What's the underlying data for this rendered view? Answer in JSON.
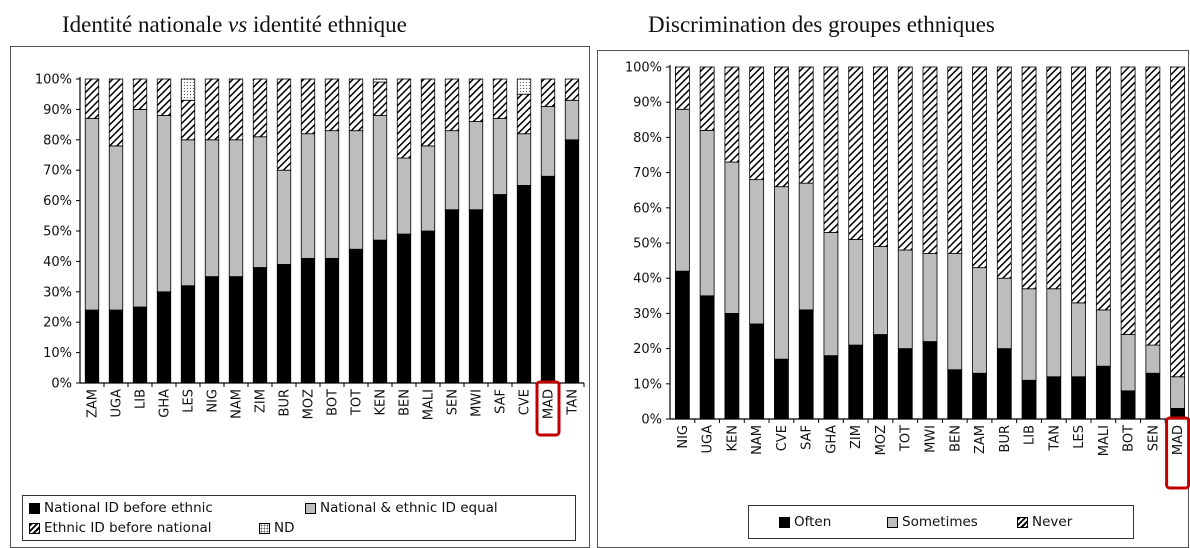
{
  "chart_data": [
    {
      "type": "bar",
      "stacked": true,
      "title": "Identité nationale ",
      "title_italic": "vs",
      "title_rest": " identité ethnique",
      "yticks": [
        "0%",
        "10%",
        "20%",
        "30%",
        "40%",
        "50%",
        "60%",
        "70%",
        "80%",
        "90%",
        "100%"
      ],
      "ylim": [
        0,
        100
      ],
      "categories": [
        "ZAM",
        "UGA",
        "LIB",
        "GHA",
        "LES",
        "NIG",
        "NAM",
        "ZIM",
        "BUR",
        "MOZ",
        "BOT",
        "TOT",
        "KEN",
        "BEN",
        "MALI",
        "SEN",
        "MWI",
        "SAF",
        "CVE",
        "MAD",
        "TAN"
      ],
      "highlight": "MAD",
      "series": [
        {
          "name": "National ID before ethnic",
          "fill": "black",
          "values": [
            24,
            24,
            25,
            30,
            32,
            35,
            35,
            38,
            39,
            41,
            41,
            44,
            47,
            49,
            50,
            57,
            57,
            62,
            65,
            68,
            80
          ]
        },
        {
          "name": "National & ethnic ID equal",
          "fill": "gray",
          "values": [
            63,
            54,
            65,
            58,
            48,
            45,
            45,
            43,
            31,
            41,
            42,
            39,
            41,
            25,
            28,
            26,
            29,
            25,
            17,
            23,
            13
          ]
        },
        {
          "name": "Ethnic ID before national",
          "fill": "hatch",
          "values": [
            13,
            22,
            10,
            12,
            13,
            20,
            20,
            19,
            30,
            18,
            17,
            17,
            11,
            26,
            22,
            17,
            14,
            13,
            13,
            9,
            7
          ]
        },
        {
          "name": "ND",
          "fill": "dot",
          "values": [
            0,
            0,
            0,
            0,
            7,
            0,
            0,
            0,
            0,
            0,
            0,
            0,
            1,
            0,
            0,
            0,
            0,
            0,
            5,
            0,
            0
          ]
        }
      ],
      "legend": [
        "National ID before ethnic",
        "National & ethnic ID equal",
        "Ethnic ID before national",
        "ND"
      ]
    },
    {
      "type": "bar",
      "stacked": true,
      "title": "Discrimination des groupes ethniques",
      "yticks": [
        "0%",
        "10%",
        "20%",
        "30%",
        "40%",
        "50%",
        "60%",
        "70%",
        "80%",
        "90%",
        "100%"
      ],
      "ylim": [
        0,
        100
      ],
      "categories": [
        "NIG",
        "UGA",
        "KEN",
        "NAM",
        "CVE",
        "SAF",
        "GHA",
        "ZIM",
        "MOZ",
        "TOT",
        "MWI",
        "BEN",
        "ZAM",
        "BUR",
        "LIB",
        "TAN",
        "LES",
        "MALI",
        "BOT",
        "SEN",
        "MAD"
      ],
      "highlight": "MAD",
      "series": [
        {
          "name": "Often",
          "fill": "black",
          "values": [
            42,
            35,
            30,
            27,
            17,
            31,
            18,
            21,
            24,
            20,
            22,
            14,
            13,
            20,
            11,
            12,
            12,
            15,
            8,
            13,
            3
          ]
        },
        {
          "name": "Sometimes",
          "fill": "gray",
          "values": [
            46,
            47,
            43,
            41,
            49,
            36,
            35,
            30,
            25,
            28,
            25,
            33,
            30,
            20,
            26,
            25,
            21,
            16,
            16,
            8,
            9
          ]
        },
        {
          "name": "Never",
          "fill": "hatch",
          "values": [
            12,
            18,
            27,
            32,
            34,
            33,
            47,
            49,
            51,
            52,
            53,
            53,
            57,
            60,
            63,
            63,
            67,
            69,
            76,
            79,
            88
          ]
        }
      ],
      "legend": [
        "Often",
        "Sometimes",
        "Never"
      ]
    }
  ]
}
